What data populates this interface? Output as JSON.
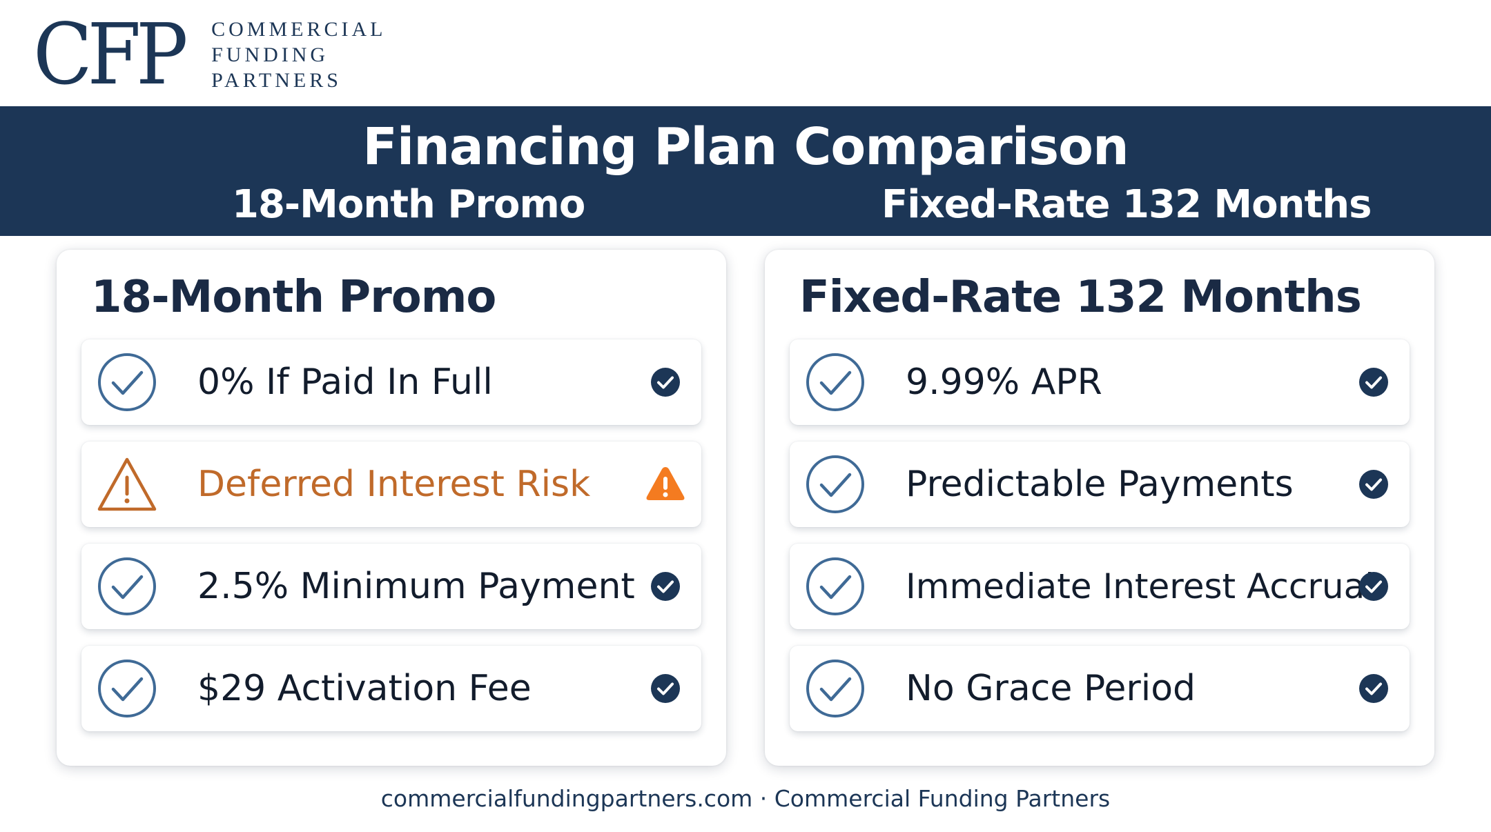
{
  "logo": {
    "mark": "CFP",
    "lines": [
      "COMMERCIAL",
      "FUNDING",
      "PARTNERS"
    ]
  },
  "header": {
    "title": "Financing Plan Comparison",
    "left_sub": "18-Month Promo",
    "right_sub": "Fixed-Rate 132 Months"
  },
  "panels": [
    {
      "title": "18-Month Promo",
      "items": [
        {
          "label": "0% If Paid In Full",
          "status": "check"
        },
        {
          "label": "Deferred Interest Risk",
          "status": "warning"
        },
        {
          "label": "2.5% Minimum Payment",
          "status": "check"
        },
        {
          "label": "$29 Activation Fee",
          "status": "check"
        }
      ]
    },
    {
      "title": "Fixed-Rate 132 Months",
      "items": [
        {
          "label": "9.99% APR",
          "status": "check"
        },
        {
          "label": "Predictable Payments",
          "status": "check"
        },
        {
          "label": "Immediate Interest Accrual",
          "status": "check"
        },
        {
          "label": "No Grace Period",
          "status": "check"
        }
      ]
    }
  ],
  "footer": "commercialfundingpartners.com · Commercial Funding Partners",
  "colors": {
    "navy": "#1c3656",
    "check_ring": "#3f6a96",
    "warning_orange": "#f47b20",
    "warning_text": "#c06a2a"
  },
  "icons": {
    "check": "circle-check-icon",
    "warning": "warning-triangle-icon",
    "badge": "check-badge-icon"
  }
}
